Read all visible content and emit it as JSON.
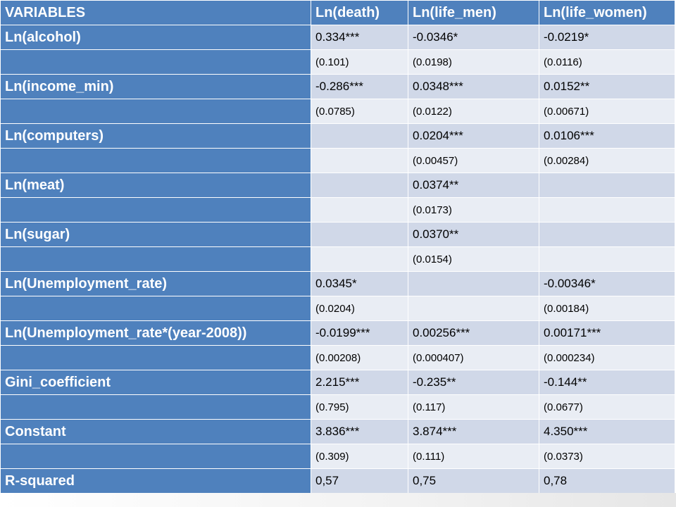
{
  "header": [
    "VARIABLES",
    "Ln(death)",
    "Ln(life_men)",
    "Ln(life_women)"
  ],
  "rows": [
    {
      "variable": "Ln(alcohol)",
      "coef": [
        "0.334***",
        "-0.0346*",
        "-0.0219*"
      ],
      "se": [
        "(0.101)",
        "(0.0198)",
        "(0.0116)"
      ]
    },
    {
      "variable": "Ln(income_min)",
      "coef": [
        "-0.286***",
        "0.0348***",
        "0.0152**"
      ],
      "se": [
        "(0.0785)",
        "(0.0122)",
        "(0.00671)"
      ]
    },
    {
      "variable": "Ln(computers)",
      "coef": [
        "",
        "0.0204***",
        "0.0106***"
      ],
      "se": [
        "",
        "(0.00457)",
        "(0.00284)"
      ]
    },
    {
      "variable": "Ln(meat)",
      "coef": [
        "",
        "0.0374**",
        ""
      ],
      "se": [
        "",
        "(0.0173)",
        ""
      ]
    },
    {
      "variable": "Ln(sugar)",
      "coef": [
        "",
        "0.0370**",
        ""
      ],
      "se": [
        "",
        "(0.0154)",
        ""
      ]
    },
    {
      "variable": "Ln(Unemployment_rate)",
      "coef": [
        "0.0345*",
        "",
        "-0.00346*"
      ],
      "se": [
        "(0.0204)",
        "",
        "(0.00184)"
      ]
    },
    {
      "variable": "Ln(Unemployment_rate*(year-2008))",
      "coef": [
        "-0.0199***",
        "0.00256***",
        "0.00171***"
      ],
      "se": [
        "(0.00208)",
        "(0.000407)",
        "(0.000234)"
      ]
    },
    {
      "variable": "Gini_coefficient",
      "coef": [
        "2.215***",
        "-0.235**",
        "-0.144**"
      ],
      "se": [
        "(0.795)",
        "(0.117)",
        "(0.0677)"
      ]
    },
    {
      "variable": "Constant",
      "coef": [
        "3.836***",
        "3.874***",
        "4.350***"
      ],
      "se": [
        "(0.309)",
        "(0.111)",
        "(0.0373)"
      ]
    },
    {
      "variable": "R-squared",
      "coef": [
        "0,57",
        "0,75",
        "0,78"
      ],
      "se": null
    }
  ],
  "colors": {
    "header": "#4f81bd",
    "coef_cell": "#d0d8e8",
    "se_cell": "#e9edf4"
  }
}
